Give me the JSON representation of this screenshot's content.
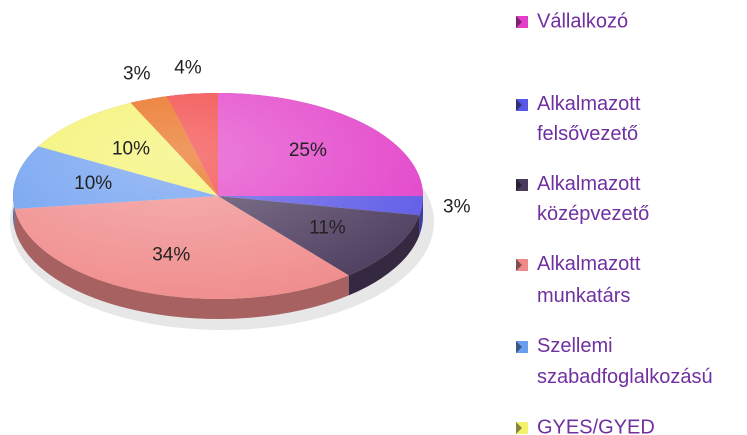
{
  "chart_data": {
    "type": "pie",
    "categories": [
      "Vállalkozó",
      "Alkalmazott felsővezető",
      "Alkalmazott középvezető",
      "Alkalmazott munkatárs",
      "Szellemi szabadfoglalkozású",
      "GYES/GYED",
      null,
      null
    ],
    "values": [
      25,
      3,
      11,
      34,
      10,
      10,
      3,
      4
    ],
    "value_labels": [
      "25%",
      "3%",
      "11%",
      "34%",
      "10%",
      "10%",
      "3%",
      "4%"
    ],
    "colors": [
      "#e23ec8",
      "#5a56e6",
      "#4a3a5c",
      "#f08a8a",
      "#6a9cf0",
      "#f4f26a",
      "#e8650e",
      "#f23c3c"
    ],
    "legend": "right"
  }
}
